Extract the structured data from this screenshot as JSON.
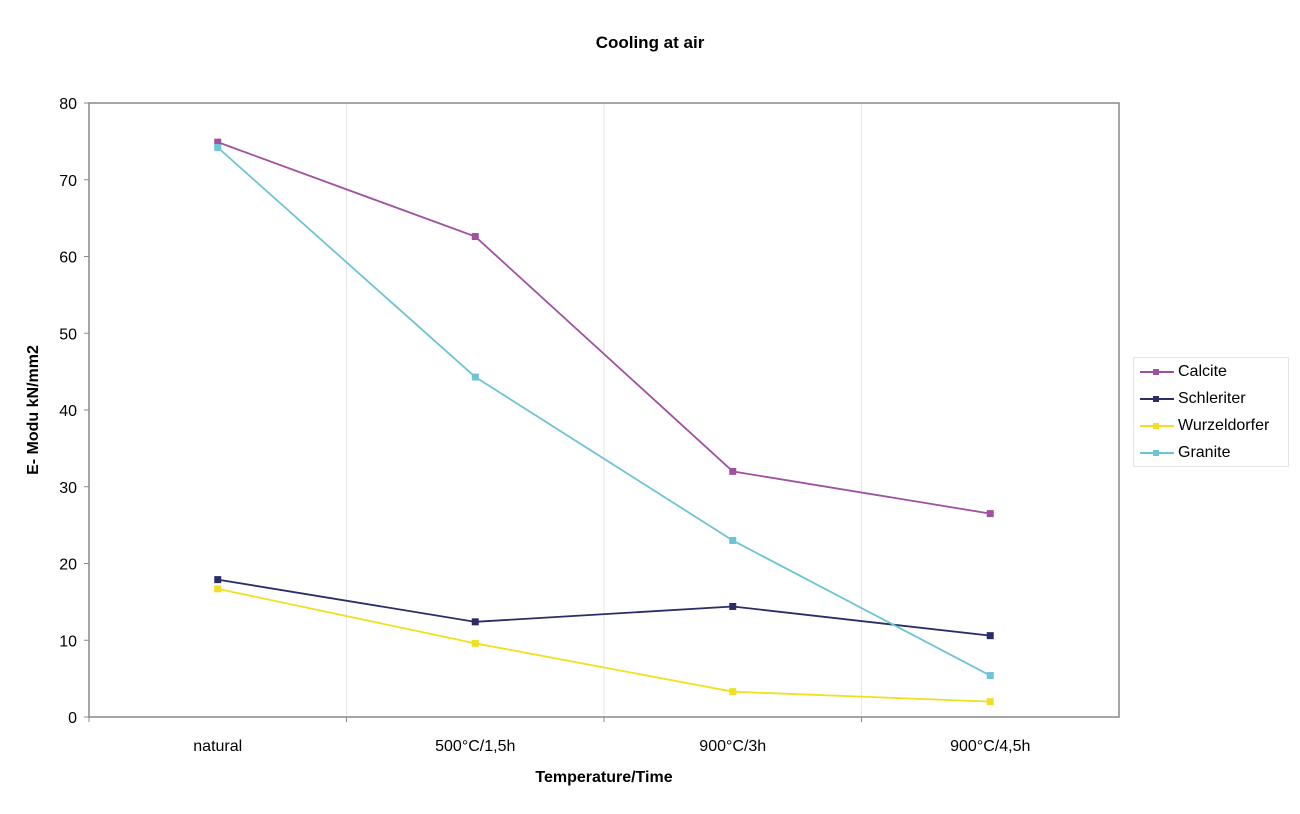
{
  "chart_data": {
    "type": "line",
    "title": "Cooling at air",
    "xlabel": "Temperature/Time",
    "ylabel": "E- Modu kN/mm2",
    "categories": [
      "natural",
      "500°C/1,5h",
      "900°C/3h",
      "900°C/4,5h"
    ],
    "ylim": [
      0,
      80
    ],
    "yticks": [
      0,
      10,
      20,
      30,
      40,
      50,
      60,
      70,
      80
    ],
    "grid": true,
    "legend_position": "right",
    "series": [
      {
        "name": "Calcite",
        "color": "#a050a0",
        "values": [
          74.9,
          62.6,
          32.0,
          26.5
        ]
      },
      {
        "name": "Schleriter",
        "color": "#2a2d66",
        "values": [
          17.9,
          12.4,
          14.4,
          10.6
        ]
      },
      {
        "name": "Wurzeldorfer",
        "color": "#f0e020",
        "values": [
          16.7,
          9.6,
          3.3,
          2.0
        ]
      },
      {
        "name": "Granite",
        "color": "#6cc4d4",
        "values": [
          74.2,
          44.3,
          23.0,
          5.4
        ]
      }
    ]
  }
}
